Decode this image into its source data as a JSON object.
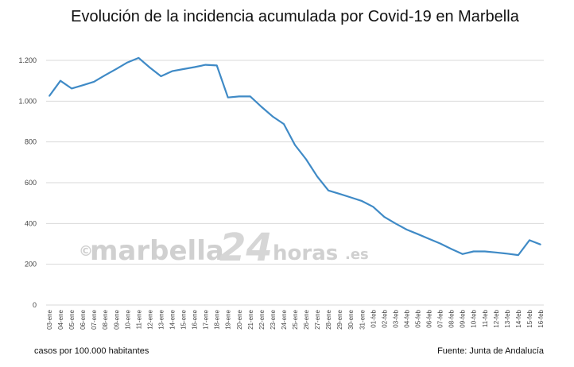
{
  "watermark": {
    "copyright": "©",
    "part1": "marbella",
    "part2": "24",
    "part3": "horas",
    "part4": ".es"
  },
  "footer": {
    "left": "casos por 100.000 habitantes",
    "right": "Fuente: Junta de Andalucía"
  },
  "chart_data": {
    "type": "line",
    "title": "Evolución de la incidencia acumulada por Covid-19 en Marbella",
    "xlabel": "",
    "ylabel": "",
    "ylim": [
      0,
      1200
    ],
    "yticks": [
      0,
      200,
      400,
      600,
      800,
      1000,
      1200
    ],
    "ytick_labels": [
      "0",
      "200",
      "400",
      "600",
      "800",
      "1.000",
      "1.200"
    ],
    "grid": true,
    "line_color": "#3f8ac6",
    "x": [
      "03-ene",
      "04-ene",
      "05-ene",
      "06-ene",
      "07-ene",
      "08-ene",
      "09-ene",
      "10-ene",
      "11-ene",
      "12-ene",
      "13-ene",
      "14-ene",
      "15-ene",
      "16-ene",
      "17-ene",
      "18-ene",
      "19-ene",
      "20-ene",
      "21-ene",
      "22-ene",
      "23-ene",
      "24-ene",
      "25-ene",
      "26-ene",
      "27-ene",
      "28-ene",
      "29-ene",
      "30-ene",
      "31-ene",
      "01-feb",
      "02-feb",
      "03-feb",
      "04-feb",
      "05-feb",
      "06-feb",
      "07-feb",
      "08-feb",
      "09-feb",
      "10-feb",
      "11-feb",
      "12-feb",
      "13-feb",
      "14-feb",
      "15-feb",
      "16-feb"
    ],
    "series": [
      {
        "values": [
          1025,
          1100,
          1062,
          1078,
          1095,
          1127,
          1158,
          1190,
          1212,
          1165,
          1122,
          1147,
          1157,
          1167,
          1178,
          1175,
          1018,
          1023,
          1023,
          972,
          925,
          888,
          785,
          715,
          630,
          562,
          545,
          528,
          510,
          482,
          432,
          400,
          370,
          348,
          325,
          302,
          275,
          250,
          263,
          263,
          258,
          252,
          245,
          318,
          297
        ]
      }
    ]
  }
}
